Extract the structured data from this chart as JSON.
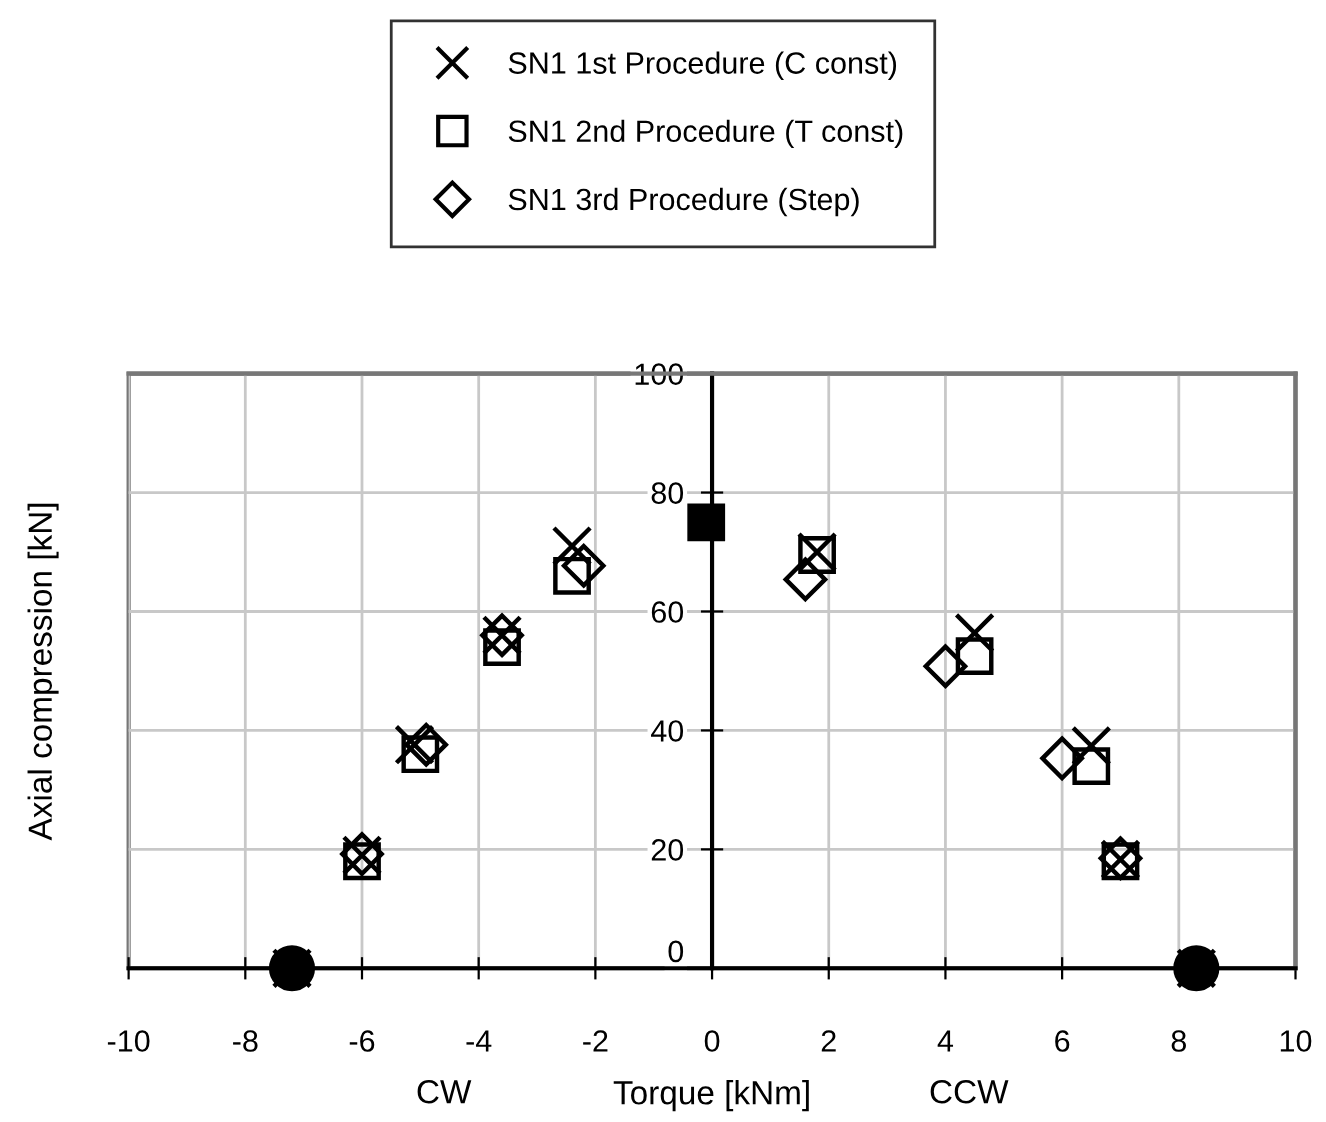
{
  "chart_data": {
    "type": "scatter",
    "xlabel": "Torque [kNm]",
    "ylabel": "Axial compression [kN]",
    "annotations": [
      "CW",
      "CCW"
    ],
    "xlim": [
      -10,
      10
    ],
    "xticks": [
      -10,
      -8,
      -6,
      -4,
      -2,
      0,
      2,
      4,
      6,
      8,
      10
    ],
    "ylim": [
      0,
      100
    ],
    "yticks": [
      0,
      20,
      40,
      60,
      80,
      100
    ],
    "grid": true,
    "legend": "top",
    "series": [
      {
        "name": "SN1 1st Procedure (C const)",
        "color": "#000000",
        "marker": "cross",
        "x": [
          -7.2,
          -6.0,
          -5.1,
          -3.6,
          -2.4,
          1.8,
          4.5,
          6.5,
          7.0,
          8.3
        ],
        "values": [
          0,
          19,
          37.6,
          56,
          71,
          70,
          56.4,
          37.4,
          18.3,
          0
        ]
      },
      {
        "name": "SN1 2nd Procedure (T const)",
        "color": "#000000",
        "marker": "square",
        "x": [
          -6.0,
          -5.0,
          -3.6,
          -2.4,
          1.8,
          4.5,
          6.5,
          7.0
        ],
        "values": [
          18,
          36,
          54,
          66,
          69.5,
          52.5,
          34,
          18
        ]
      },
      {
        "name": "SN1 3rd Procedure (Step)",
        "color": "#000000",
        "marker": "diamond",
        "x": [
          -6.0,
          -4.9,
          -3.6,
          -2.2,
          1.6,
          4.0,
          6.0,
          7.0
        ],
        "values": [
          19.2,
          37.6,
          56,
          67.7,
          65.4,
          50.8,
          35.3,
          18.5
        ]
      },
      {
        "color": "#000000",
        "marker": "circle",
        "x": [
          -7.2,
          8.3
        ],
        "values": [
          0,
          0
        ]
      },
      {
        "color": "#000000",
        "marker": "square",
        "x": [
          -0.1
        ],
        "values": [
          75
        ]
      }
    ]
  }
}
